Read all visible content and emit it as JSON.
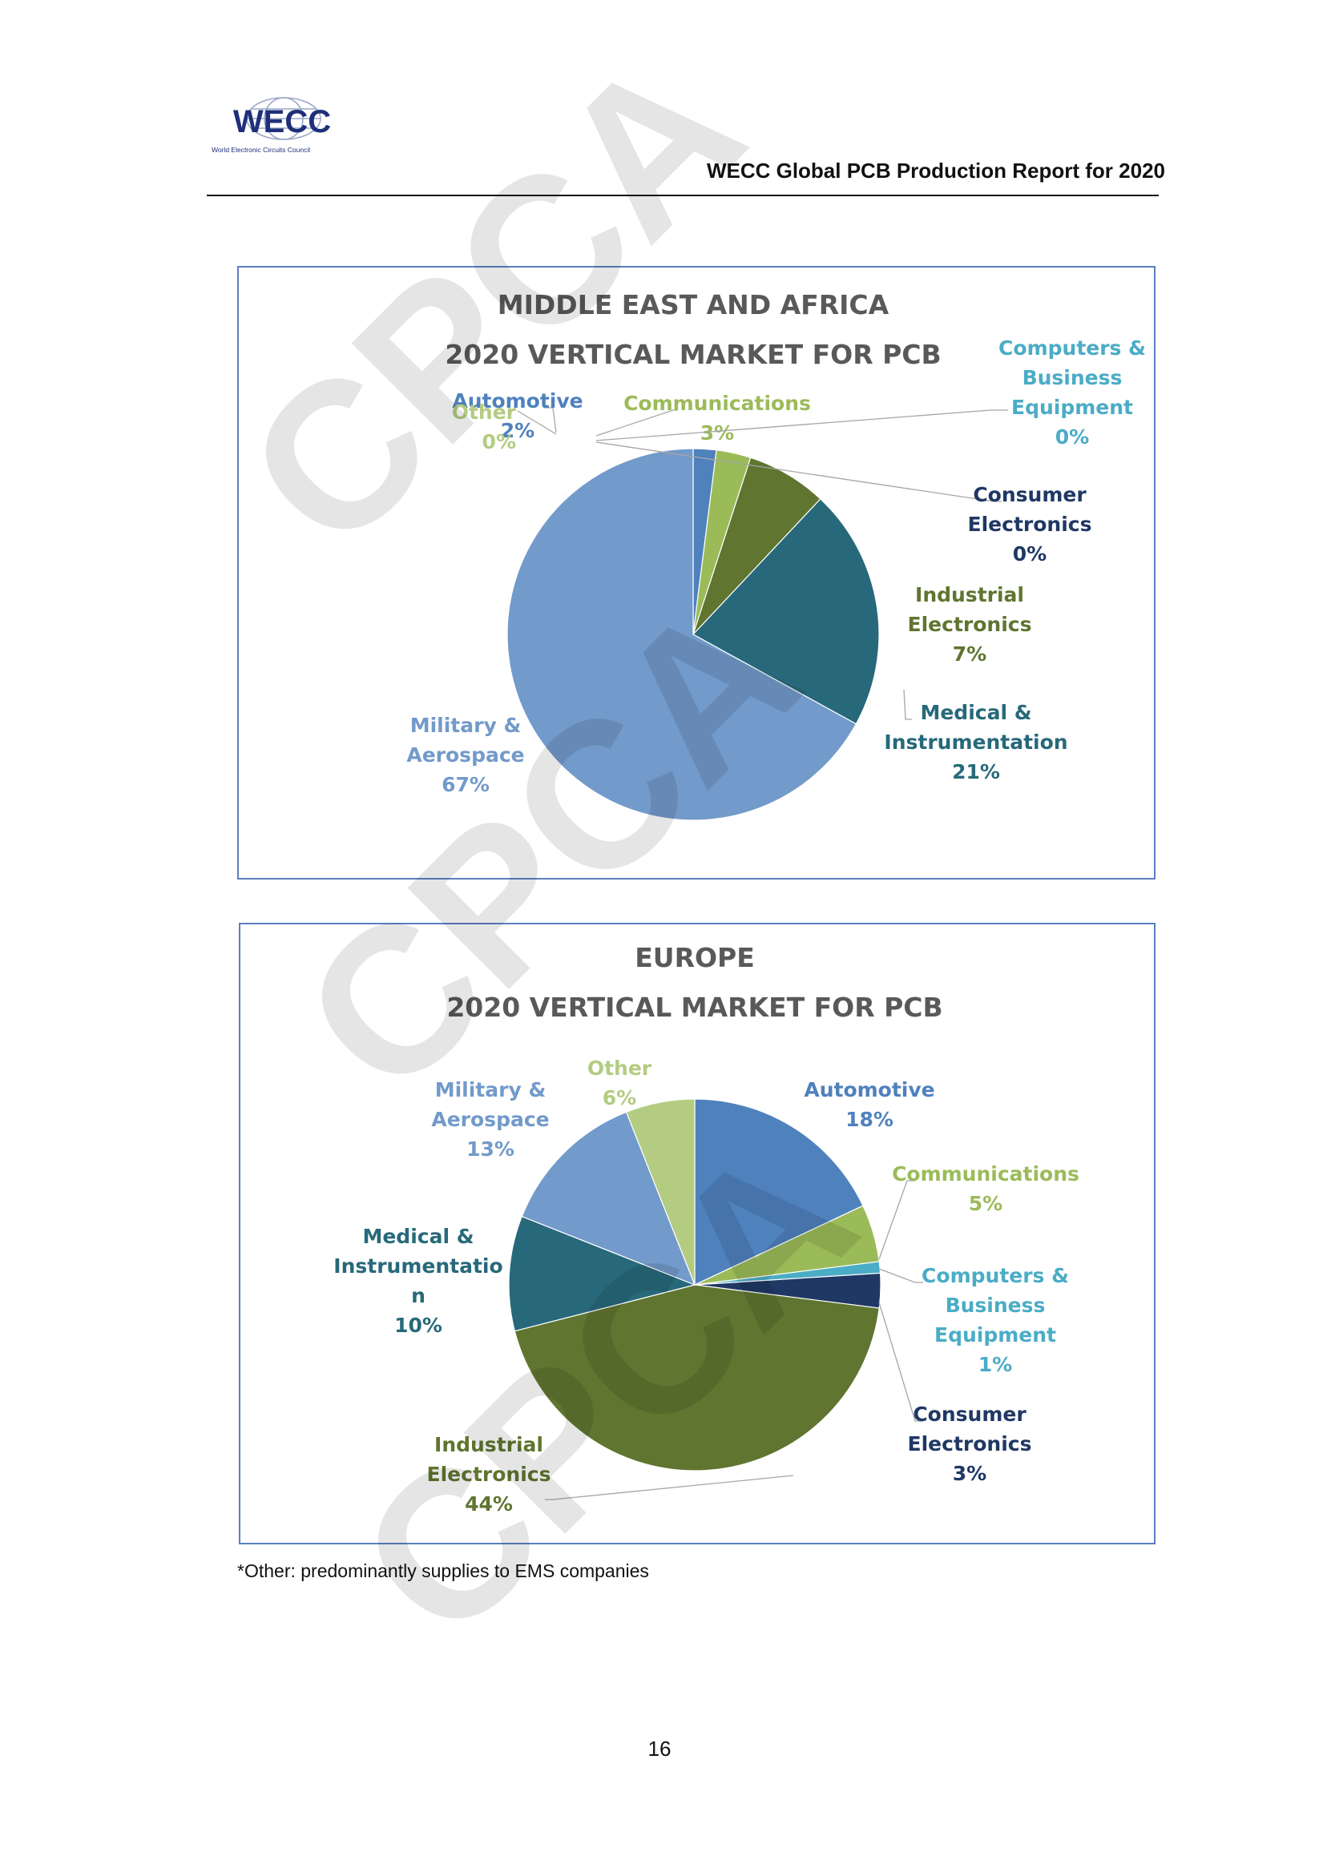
{
  "header": {
    "logo_text": "WECC",
    "logo_subtitle": "World Electronic Circuits Council",
    "report_title": "WECC Global PCB Production Report for 2020"
  },
  "chart_data": [
    {
      "type": "pie",
      "title_lines": [
        "MIDDLE EAST AND AFRICA",
        "2020 VERTICAL MARKET FOR PCB"
      ],
      "slices": [
        {
          "name": [
            "Automotive"
          ],
          "value": 2,
          "label": "2%",
          "color": "#4f81bd",
          "label_color": "#4f81bd"
        },
        {
          "name": [
            "Communications"
          ],
          "value": 3,
          "label": "3%",
          "color": "#9bbb59",
          "label_color": "#9bbb59"
        },
        {
          "name": [
            "Computers &",
            "Business",
            "Equipment"
          ],
          "value": 0,
          "label": "0%",
          "color": "#4bacc6",
          "label_color": "#4bacc6"
        },
        {
          "name": [
            "Consumer",
            "Electronics"
          ],
          "value": 0,
          "label": "0%",
          "color": "#1f3864",
          "label_color": "#1f3864"
        },
        {
          "name": [
            "Industrial",
            "Electronics"
          ],
          "value": 7,
          "label": "7%",
          "color": "#5f7530",
          "label_color": "#5f7530"
        },
        {
          "name": [
            "Medical &",
            "Instrumentation"
          ],
          "value": 21,
          "label": "21%",
          "color": "#27697a",
          "label_color": "#27697a"
        },
        {
          "name": [
            "Military &",
            "Aerospace"
          ],
          "value": 67,
          "label": "67%",
          "color": "#729aca",
          "label_color": "#729aca"
        },
        {
          "name": [
            "Other"
          ],
          "value": 0,
          "label": "0%",
          "color": "#b3cc82",
          "label_color": "#b3cc82"
        }
      ]
    },
    {
      "type": "pie",
      "title_lines": [
        "EUROPE",
        "2020 VERTICAL MARKET FOR PCB"
      ],
      "slices": [
        {
          "name": [
            "Automotive"
          ],
          "value": 18,
          "label": "18%",
          "color": "#4f81bd",
          "label_color": "#4f81bd"
        },
        {
          "name": [
            "Communications"
          ],
          "value": 5,
          "label": "5%",
          "color": "#9bbb59",
          "label_color": "#9bbb59"
        },
        {
          "name": [
            "Computers &",
            "Business",
            "Equipment"
          ],
          "value": 1,
          "label": "1%",
          "color": "#4bacc6",
          "label_color": "#4bacc6"
        },
        {
          "name": [
            "Consumer",
            "Electronics"
          ],
          "value": 3,
          "label": "3%",
          "color": "#1f3864",
          "label_color": "#1f3864"
        },
        {
          "name": [
            "Industrial",
            "Electronics"
          ],
          "value": 44,
          "label": "44%",
          "color": "#5f7530",
          "label_color": "#5f7530"
        },
        {
          "name": [
            "Medical &",
            "Instrumentatio",
            "n"
          ],
          "value": 10,
          "label": "10%",
          "color": "#27697a",
          "label_color": "#27697a"
        },
        {
          "name": [
            "Military &",
            "Aerospace"
          ],
          "value": 13,
          "label": "13%",
          "color": "#729aca",
          "label_color": "#729aca"
        },
        {
          "name": [
            "Other"
          ],
          "value": 6,
          "label": "6%",
          "color": "#b3cc82",
          "label_color": "#b3cc82"
        }
      ]
    }
  ],
  "footnote": "*Other: predominantly supplies to EMS companies",
  "page_number": "16",
  "watermark": "CPCA"
}
